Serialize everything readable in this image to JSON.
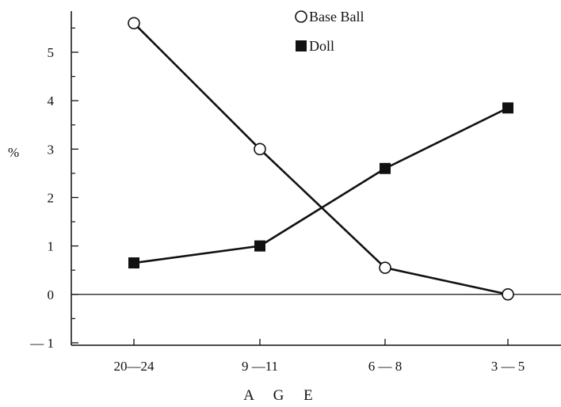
{
  "chart_data": {
    "type": "line",
    "categories": [
      "20—24",
      "9 —11",
      "6 — 8",
      "3 — 5"
    ],
    "series": [
      {
        "name": "Base Ball",
        "marker": "open-circle",
        "values": [
          5.6,
          3.0,
          0.55,
          0.0
        ]
      },
      {
        "name": "Doll",
        "marker": "filled-square",
        "values": [
          0.65,
          1.0,
          2.6,
          3.85
        ]
      }
    ],
    "ylabel": "%",
    "xlabel": "A G E",
    "ylim": [
      -1.05,
      5.85
    ],
    "yticks": [
      {
        "value": -1,
        "label": "— 1"
      },
      {
        "value": 0,
        "label": "0"
      },
      {
        "value": 1,
        "label": "1"
      },
      {
        "value": 2,
        "label": "2"
      },
      {
        "value": 3,
        "label": "3"
      },
      {
        "value": 4,
        "label": "4"
      },
      {
        "value": 5,
        "label": "5"
      }
    ],
    "minor_step": 0.5,
    "zero_line": true,
    "legend_position": "top-right",
    "grid": false,
    "colors": {
      "line": "#111111",
      "background": "#ffffff"
    }
  }
}
